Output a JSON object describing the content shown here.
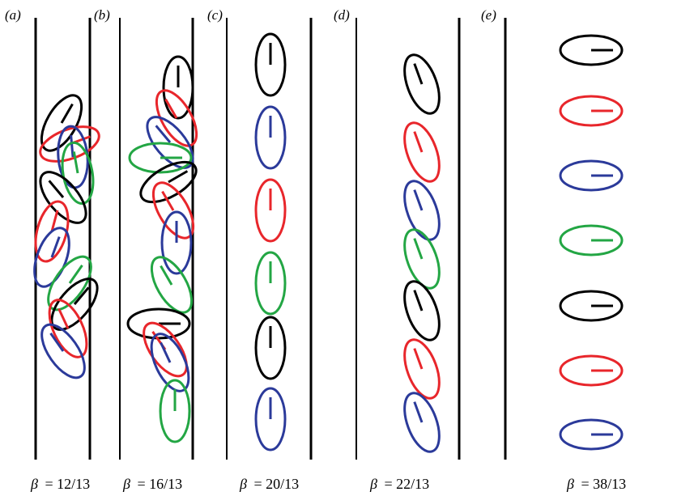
{
  "colors": {
    "black": "#000000",
    "red": "#e8262b",
    "blue": "#2b3a9a",
    "green": "#23a644",
    "wall": "#000000"
  },
  "panels": [
    {
      "id": "a",
      "letter": "(a)",
      "beta_symbol": "β",
      "beta_value": "= 12/13",
      "cells": [
        {
          "color": "black",
          "angle_deg": 30
        },
        {
          "color": "red",
          "angle_deg": 70
        },
        {
          "color": "blue",
          "angle_deg": -5
        },
        {
          "color": "green",
          "angle_deg": -10
        },
        {
          "color": "black",
          "angle_deg": -40
        },
        {
          "color": "red",
          "angle_deg": 15
        },
        {
          "color": "blue",
          "angle_deg": 20
        },
        {
          "color": "green",
          "angle_deg": 35
        },
        {
          "color": "black",
          "angle_deg": 40
        },
        {
          "color": "red",
          "angle_deg": -25
        },
        {
          "color": "blue",
          "angle_deg": -35
        }
      ]
    },
    {
      "id": "b",
      "letter": "(b)",
      "beta_symbol": "β",
      "beta_value": "= 16/13",
      "cells": [
        {
          "color": "black",
          "angle_deg": 0
        },
        {
          "color": "red",
          "angle_deg": -30
        },
        {
          "color": "blue",
          "angle_deg": -40
        },
        {
          "color": "green",
          "angle_deg": 90
        },
        {
          "color": "black",
          "angle_deg": 60
        },
        {
          "color": "red",
          "angle_deg": -30
        },
        {
          "color": "blue",
          "angle_deg": 0
        },
        {
          "color": "green",
          "angle_deg": -30
        },
        {
          "color": "black",
          "angle_deg": 90
        },
        {
          "color": "red",
          "angle_deg": -35
        },
        {
          "color": "blue",
          "angle_deg": -25
        },
        {
          "color": "green",
          "angle_deg": 0
        }
      ]
    },
    {
      "id": "c",
      "letter": "(c)",
      "beta_symbol": "β",
      "beta_value": "= 20/13",
      "cells": [
        {
          "color": "black",
          "angle_deg": 0
        },
        {
          "color": "blue",
          "angle_deg": 0
        },
        {
          "color": "red",
          "angle_deg": 0
        },
        {
          "color": "green",
          "angle_deg": 0
        },
        {
          "color": "black",
          "angle_deg": 0
        },
        {
          "color": "blue",
          "angle_deg": 0
        }
      ]
    },
    {
      "id": "d",
      "letter": "(d)",
      "beta_symbol": "β",
      "beta_value": "= 22/13",
      "cells": [
        {
          "color": "black",
          "angle_deg": -20
        },
        {
          "color": "red",
          "angle_deg": -20
        },
        {
          "color": "blue",
          "angle_deg": -20
        },
        {
          "color": "green",
          "angle_deg": -20
        },
        {
          "color": "black",
          "angle_deg": -20
        },
        {
          "color": "red",
          "angle_deg": -20
        },
        {
          "color": "blue",
          "angle_deg": -20
        }
      ]
    },
    {
      "id": "e",
      "letter": "(e)",
      "beta_symbol": "β",
      "beta_value": "= 38/13",
      "cells": [
        {
          "color": "black",
          "angle_deg": 90
        },
        {
          "color": "red",
          "angle_deg": 90
        },
        {
          "color": "blue",
          "angle_deg": 90
        },
        {
          "color": "green",
          "angle_deg": 90
        },
        {
          "color": "black",
          "angle_deg": 90
        },
        {
          "color": "red",
          "angle_deg": 90
        },
        {
          "color": "blue",
          "angle_deg": 90
        }
      ]
    }
  ]
}
